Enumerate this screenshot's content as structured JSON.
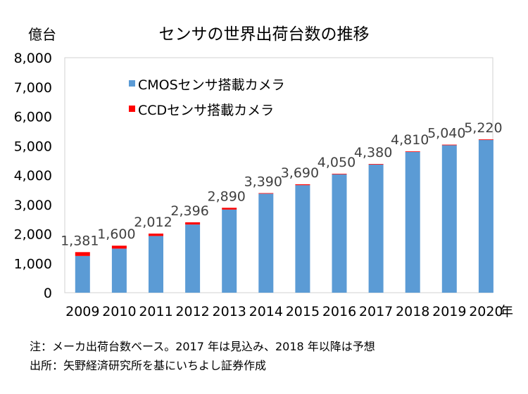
{
  "chart_data": {
    "type": "bar",
    "stacked": true,
    "title": "センサの世界出荷台数の推移",
    "ylabel": "億台",
    "xlabel_suffix": "年",
    "categories": [
      "2009",
      "2010",
      "2011",
      "2012",
      "2013",
      "2014",
      "2015",
      "2016",
      "2017",
      "2018",
      "2019",
      "2020"
    ],
    "ylim": [
      0,
      8000
    ],
    "yticks": [
      0,
      1000,
      2000,
      3000,
      4000,
      5000,
      6000,
      7000,
      8000
    ],
    "ytick_labels": [
      "0",
      "1,000",
      "2,000",
      "3,000",
      "4,000",
      "5,000",
      "6,000",
      "7,000",
      "8,000"
    ],
    "series": [
      {
        "name": "CMOSセンサ搭載カメラ",
        "color": "#5B9BD5",
        "values": [
          1250,
          1500,
          1930,
          2320,
          2830,
          3370,
          3660,
          4030,
          4360,
          4790,
          5020,
          5200
        ]
      },
      {
        "name": "CCDセンサ搭載カメラ",
        "color": "#FF0000",
        "values": [
          131,
          100,
          82,
          76,
          60,
          20,
          30,
          20,
          20,
          20,
          20,
          20
        ]
      }
    ],
    "totals": [
      1381,
      1600,
      2012,
      2396,
      2890,
      3390,
      3690,
      4050,
      4380,
      4810,
      5040,
      5220
    ],
    "total_labels": [
      "1,381",
      "1,600",
      "2,012",
      "2,396",
      "2,890",
      "3,390",
      "3,690",
      "4,050",
      "4,380",
      "4,810",
      "5,040",
      "5,220"
    ],
    "legend_position": "top-left"
  },
  "notes": {
    "line1": "注：メーカ出荷台数ベース。2017 年は見込み、2018 年以降は予想",
    "line2": "出所：矢野経済研究所を基にいちよし証券作成"
  }
}
